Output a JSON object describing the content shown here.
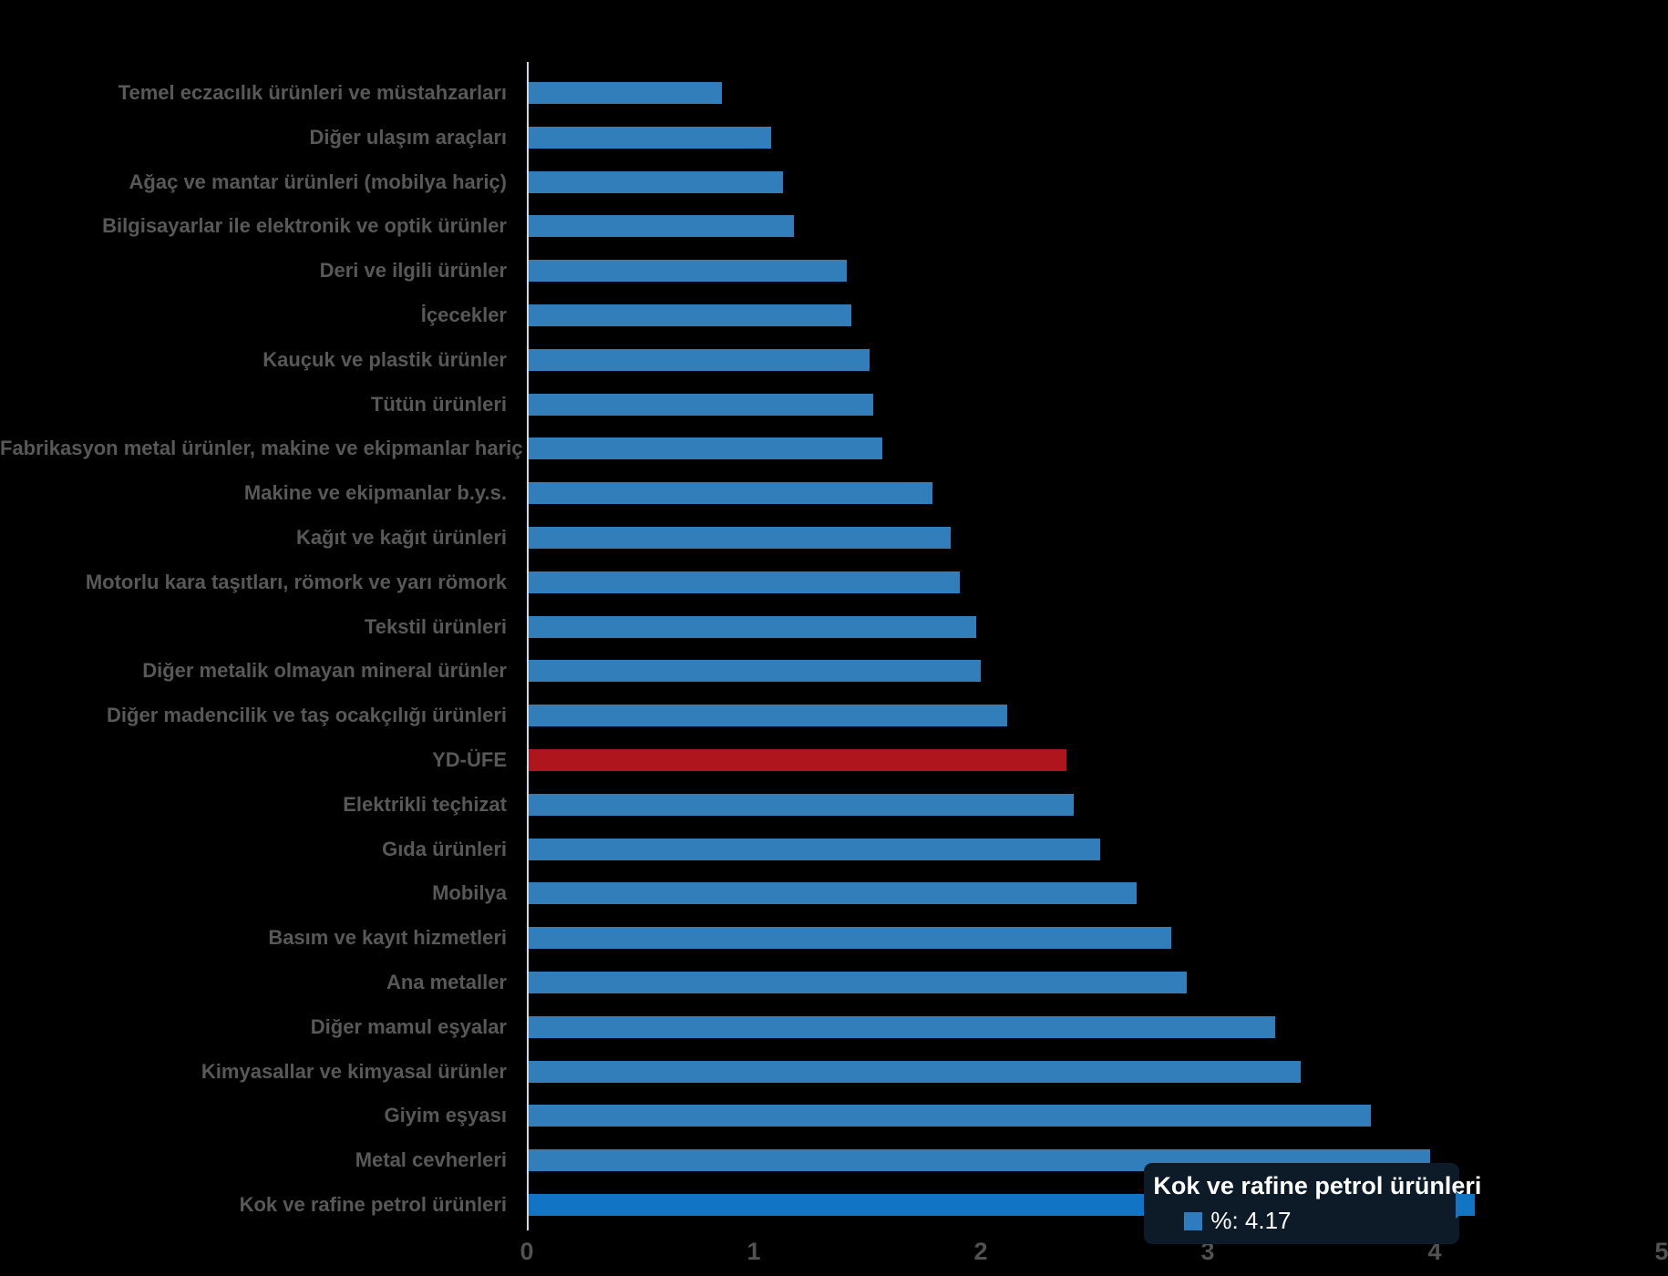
{
  "chart_data": {
    "type": "bar",
    "orientation": "horizontal",
    "title": "",
    "xlabel": "",
    "ylabel": "",
    "xlim": [
      0,
      5
    ],
    "x_ticks": [
      "0",
      "1",
      "2",
      "3",
      "4",
      "5"
    ],
    "grid": false,
    "categories": [
      "Temel eczacılık ürünleri ve müstahzarları",
      "Diğer ulaşım araçları",
      "Ağaç ve mantar ürünleri (mobilya hariç)",
      "Bilgisayarlar ile elektronik ve optik ürünler",
      "Deri ve ilgili ürünler",
      "İçecekler",
      "Kauçuk ve plastik ürünler",
      "Tütün ürünleri",
      "Fabrikasyon metal ürünler, makine ve ekipmanlar hariç",
      "Makine ve ekipmanlar b.y.s.",
      "Kağıt ve kağıt ürünleri",
      "Motorlu kara taşıtları, römork ve yarı römork",
      "Tekstil ürünleri",
      "Diğer metalik olmayan mineral ürünler",
      "Diğer madencilik ve taş ocakçılığı ürünleri",
      "YD-ÜFE",
      "Elektrikli teçhizat",
      "Gıda ürünleri",
      "Mobilya",
      "Basım ve kayıt hizmetleri",
      "Ana metaller",
      "Diğer mamul eşyalar",
      "Kimyasallar ve kimyasal ürünler",
      "Giyim eşyası",
      "Metal cevherleri",
      "Kok ve rafine petrol ürünleri"
    ],
    "values": [
      0.85,
      1.07,
      1.12,
      1.17,
      1.4,
      1.42,
      1.5,
      1.52,
      1.56,
      1.78,
      1.86,
      1.9,
      1.97,
      1.99,
      2.11,
      2.37,
      2.4,
      2.52,
      2.68,
      2.83,
      2.9,
      3.29,
      3.4,
      3.71,
      3.97,
      4.17
    ],
    "colors": {
      "bar_default": "#317eba",
      "axis_line": "#ccd8e4",
      "label_text": "#585858",
      "tick_text": "#525252",
      "background": "#000000"
    },
    "highlight": {
      "category": "YD-ÜFE",
      "color": "#af151c"
    },
    "hover": {
      "category": "Kok ve rafine petrol ürünleri",
      "color": "#1174c5"
    }
  },
  "tooltip": {
    "title": "Kok ve rafine petrol ürünleri",
    "value_label": "%: 4.17",
    "marker_color": "#2e7cc0",
    "background": "#0c1b27"
  }
}
